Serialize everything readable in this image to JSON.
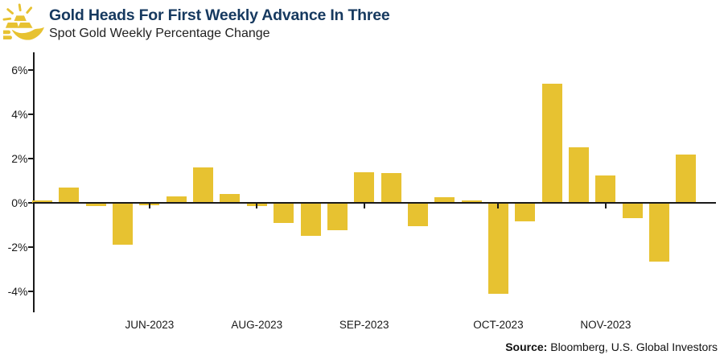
{
  "header": {
    "title": "Gold Heads For First Weekly Advance In Three",
    "subtitle": "Spot Gold Weekly Percentage Change",
    "icon": "hand-holding-gold-bars-with-sun-rays"
  },
  "colors": {
    "gold": "#E7C231",
    "title_navy": "#16395F",
    "axis_black": "#1A1A1A"
  },
  "chart_data": {
    "type": "bar",
    "title": "Gold Heads For First Weekly Advance In Three",
    "subtitle": "Spot Gold Weekly Percentage Change",
    "unit": "percent",
    "bar_color": "#E7C231",
    "grid": false,
    "legend": "none",
    "values": [
      0.1,
      0.7,
      -0.15,
      -1.9,
      -0.1,
      0.3,
      1.6,
      0.4,
      -0.15,
      -0.9,
      -1.5,
      -1.25,
      1.4,
      1.35,
      -1.05,
      0.25,
      0.1,
      -4.1,
      -0.85,
      5.4,
      2.5,
      1.25,
      -0.7,
      -2.65,
      2.2
    ],
    "x_tick_labels": [
      {
        "index": 4,
        "label": "JUN-2023"
      },
      {
        "index": 8,
        "label": "AUG-2023"
      },
      {
        "index": 12,
        "label": "SEP-2023"
      },
      {
        "index": 17,
        "label": "OCT-2023"
      },
      {
        "index": 21,
        "label": "NOV-2023"
      }
    ],
    "y_ticks": [
      {
        "value": 6,
        "label": "6%"
      },
      {
        "value": 4,
        "label": "4%"
      },
      {
        "value": 2,
        "label": "2%"
      },
      {
        "value": 0,
        "label": "0%"
      },
      {
        "value": -2,
        "label": "-2%"
      },
      {
        "value": -4,
        "label": "-4%"
      }
    ],
    "ylim": [
      -4.95,
      6.8
    ]
  },
  "footer": {
    "source_label": "Source:",
    "source_text": " Bloomberg, U.S. Global Investors"
  }
}
